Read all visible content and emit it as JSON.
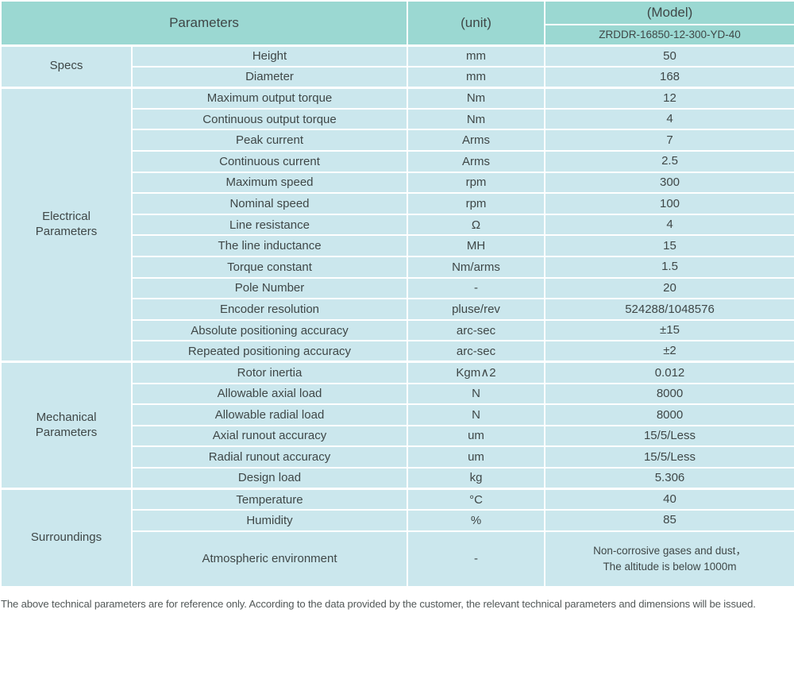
{
  "colors": {
    "header_bg": "#9bd8d2",
    "cell_bg": "#cbe7ed",
    "divider": "#ffffff",
    "text": "#3f4747",
    "footer_text": "#525858"
  },
  "table": {
    "header": {
      "parameters_label": "Parameters",
      "unit_label": "(unit)",
      "model_label": "(Model)",
      "model_value": "ZRDDR-16850-12-300-YD-40"
    },
    "sections": [
      {
        "name": "Specs",
        "rows": [
          {
            "parameter": "Height",
            "unit": "mm",
            "value": "50"
          },
          {
            "parameter": "Diameter",
            "unit": "mm",
            "value": "168"
          }
        ]
      },
      {
        "name": "Electrical\nParameters",
        "rows": [
          {
            "parameter": "Maximum output torque",
            "unit": "Nm",
            "value": "12"
          },
          {
            "parameter": "Continuous output torque",
            "unit": "Nm",
            "value": "4"
          },
          {
            "parameter": "Peak current",
            "unit": "Arms",
            "value": "7"
          },
          {
            "parameter": "Continuous current",
            "unit": "Arms",
            "value": "2.5"
          },
          {
            "parameter": "Maximum speed",
            "unit": "rpm",
            "value": "300"
          },
          {
            "parameter": "Nominal speed",
            "unit": "rpm",
            "value": "100"
          },
          {
            "parameter": "Line resistance",
            "unit": "Ω",
            "value": "4"
          },
          {
            "parameter": "The line inductance",
            "unit": "MH",
            "value": "15"
          },
          {
            "parameter": "Torque constant",
            "unit": "Nm/arms",
            "value": "1.5"
          },
          {
            "parameter": "Pole Number",
            "unit": "-",
            "value": "20"
          },
          {
            "parameter": "Encoder resolution",
            "unit": "pluse/rev",
            "value": "524288/1048576"
          },
          {
            "parameter": "Absolute positioning accuracy",
            "unit": "arc-sec",
            "value": "±15"
          },
          {
            "parameter": "Repeated positioning accuracy",
            "unit": "arc-sec",
            "value": "±2"
          }
        ]
      },
      {
        "name": "Mechanical\nParameters",
        "rows": [
          {
            "parameter": "Rotor inertia",
            "unit": "Kgm∧2",
            "value": "0.012"
          },
          {
            "parameter": "Allowable axial load",
            "unit": "N",
            "value": "8000"
          },
          {
            "parameter": "Allowable radial load",
            "unit": "N",
            "value": "8000"
          },
          {
            "parameter": "Axial runout accuracy",
            "unit": "um",
            "value": "15/5/Less"
          },
          {
            "parameter": "Radial runout accuracy",
            "unit": "um",
            "value": "15/5/Less"
          },
          {
            "parameter": "Design load",
            "unit": "kg",
            "value": "5.306"
          }
        ]
      },
      {
        "name": "Surroundings",
        "rows": [
          {
            "parameter": "Temperature",
            "unit": "°C",
            "value": "40"
          },
          {
            "parameter": "Humidity",
            "unit": "%",
            "value": "85"
          },
          {
            "parameter": "Atmospheric environment",
            "unit": "-",
            "value": "Non-corrosive gases and dust，\nThe altitude is below 1000m",
            "tall": true,
            "small_value": true
          }
        ]
      }
    ]
  },
  "footer": {
    "note": "The above technical parameters are for reference only. According to the data provided by the customer, the relevant technical parameters and dimensions will be issued."
  }
}
